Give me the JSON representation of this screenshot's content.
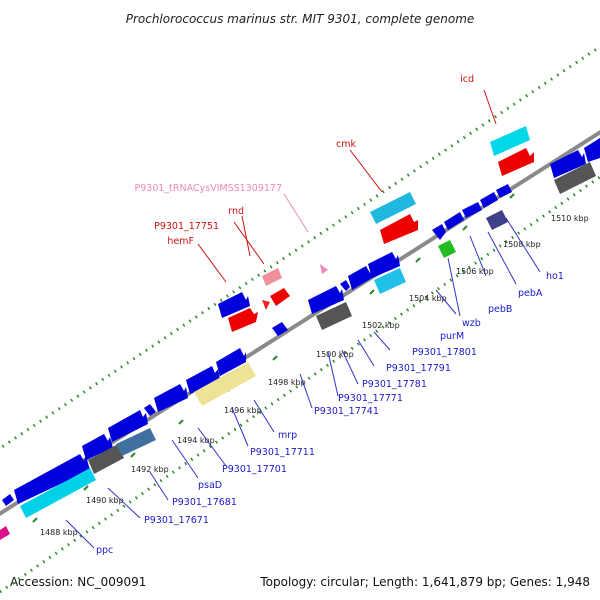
{
  "title": "Prochlorococcus marinus str. MIT 9301, complete genome",
  "footer": {
    "accession": "Accession: NC_009091",
    "summary": "Topology: circular; Length: 1,641,879 bp; Genes: 1,948"
  },
  "colors": {
    "backbone": "#8c8c8c",
    "tick": "#2a8a2a",
    "forward": "#0000dd",
    "cds_red": "#ee0000",
    "cyan": "#00c8e8",
    "gray": "#555555",
    "khaki": "#eee296",
    "pink": "#f0a0a8",
    "green": "#22bb22",
    "purple": "#404088",
    "magenta": "#dd1188",
    "label_blue": "#1a1acc",
    "label_red": "#cc1111",
    "label_pink": "#ee88bb"
  },
  "position_labels": [
    "1488 kbp",
    "1490 kbp",
    "1492 kbp",
    "1494 kbp",
    "1496 kbp",
    "1498 kbp",
    "1500 kbp",
    "1502 kbp",
    "1504 kbp",
    "1506 kbp",
    "1508 kbp",
    "1510 kbp"
  ],
  "gene_labels": {
    "ppc": "ppc",
    "p17671": "P9301_17671",
    "p17681": "P9301_17681",
    "psaD": "psaD",
    "p17701": "P9301_17701",
    "p17711": "P9301_17711",
    "mrp": "mrp",
    "p17741": "P9301_17741",
    "p17771": "P9301_17771",
    "p17781": "P9301_17781",
    "p17791": "P9301_17791",
    "p17801": "P9301_17801",
    "purM": "purM",
    "wzb": "wzb",
    "pebB": "pebB",
    "pebA": "pebA",
    "ho1": "ho1",
    "icd": "icd",
    "cmk": "cmk",
    "trna": "P9301_tRNACysVIMSS1309177",
    "rnd": "rnd",
    "p17751": "P9301_17751",
    "hemF": "hemF"
  }
}
